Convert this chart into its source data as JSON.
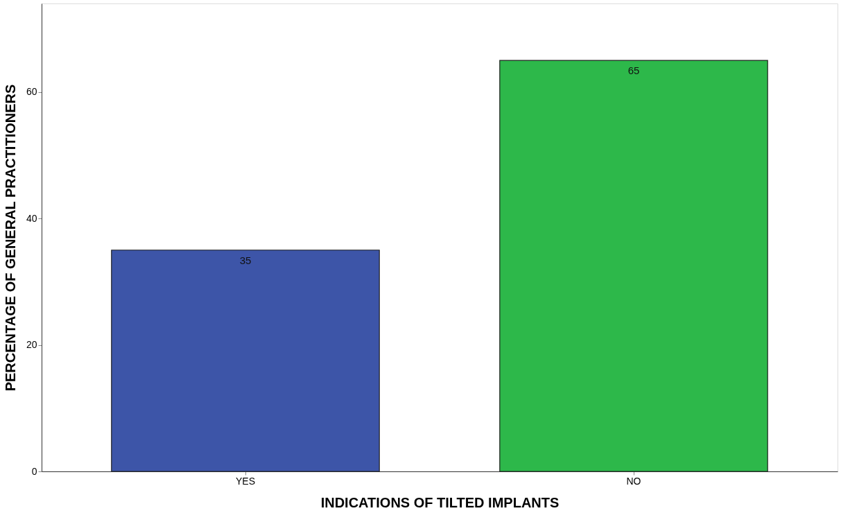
{
  "chart_data": {
    "type": "bar",
    "xlabel": "INDICATIONS OF TILTED IMPLANTS",
    "ylabel": "PERCENTAGE OF GENERAL PRACTITIONERS",
    "categories": [
      "YES",
      "NO"
    ],
    "values": [
      35,
      65
    ],
    "colors": [
      "#3d55a8",
      "#2db84a"
    ],
    "ylim": [
      0,
      74
    ],
    "yticks": [
      0,
      20,
      40,
      60
    ],
    "grid": false,
    "data_labels": true
  }
}
